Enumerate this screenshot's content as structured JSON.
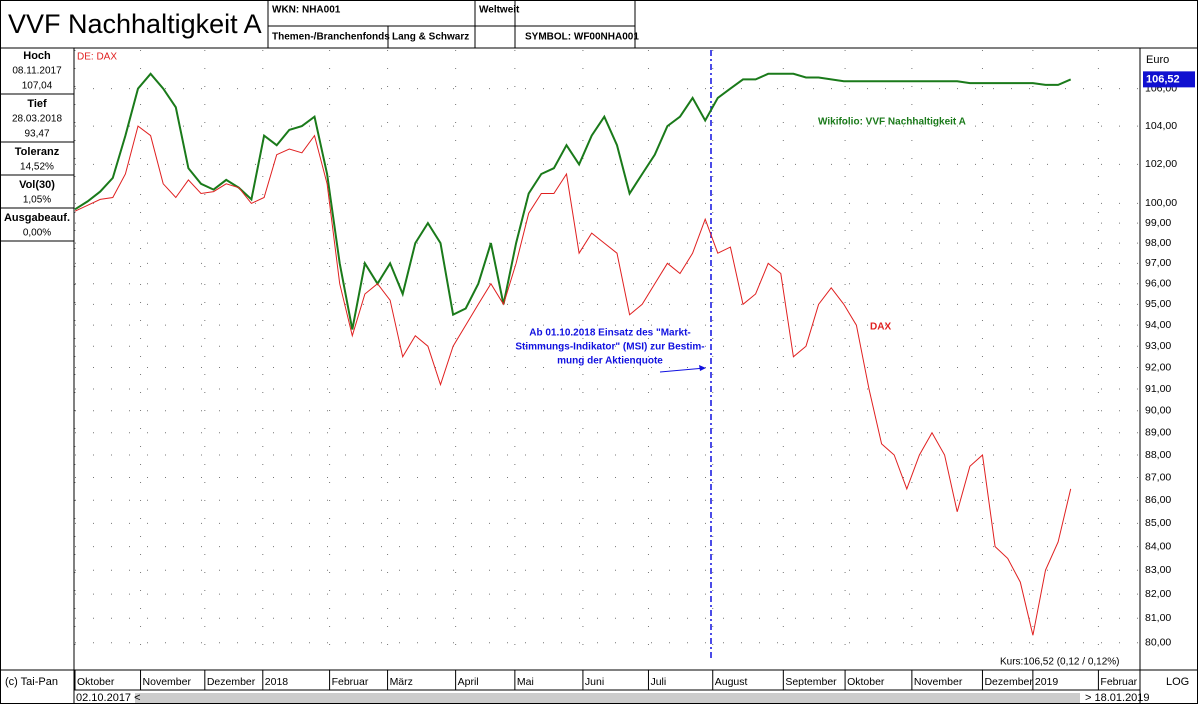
{
  "header": {
    "title": "VVF Nachhaltigkeit A",
    "wkn": "WKN: NHA001",
    "category": "Themen-/Branchenfonds",
    "exchange": "Lang & Schwarz",
    "region": "Weltweit",
    "symbol": "SYMBOL: WF00NHA001"
  },
  "stats": [
    {
      "label": "Hoch",
      "lines": [
        "08.11.2017",
        "107,04"
      ]
    },
    {
      "label": "Tief",
      "lines": [
        "28.03.2018",
        "93,47"
      ]
    },
    {
      "label": "Toleranz",
      "lines": [
        "14,52%"
      ]
    },
    {
      "label": "Vol(30)",
      "lines": [
        "1,05%"
      ]
    },
    {
      "label": "Ausgabeauf.",
      "lines": [
        "0,00%"
      ]
    }
  ],
  "footer": {
    "copyright": "(c) Tai-Pan",
    "scale_mode": "LOG",
    "start": "02.10.2017 <",
    "end": "> 18.01.2019"
  },
  "chart_data": {
    "type": "line",
    "subtitle": "DE: DAX",
    "y_unit": "Euro",
    "last_label": "106,52",
    "log_scale": true,
    "grid": true,
    "quote": "Kurs:106,52 (0,12 / 0,12%)",
    "annotation": [
      "Ab 01.10.2018 Einsatz des \"Markt-",
      "Stimmungs-Indikator\" (MSI) zur Bestim-",
      "mung der Aktienquote"
    ],
    "xlim": [
      0,
      84.5
    ],
    "xticks": [
      {
        "value": 0,
        "label": "Oktober"
      },
      {
        "value": 5.2,
        "label": "November"
      },
      {
        "value": 10.3,
        "label": "Dezember"
      },
      {
        "value": 14.9,
        "label": "2018"
      },
      {
        "value": 20.2,
        "label": "Februar"
      },
      {
        "value": 24.8,
        "label": "März"
      },
      {
        "value": 30.2,
        "label": "April"
      },
      {
        "value": 34.9,
        "label": "Mai"
      },
      {
        "value": 40.3,
        "label": "Juni"
      },
      {
        "value": 45.5,
        "label": "Juli"
      },
      {
        "value": 50.6,
        "label": "August"
      },
      {
        "value": 56.2,
        "label": "September"
      },
      {
        "value": 61.1,
        "label": "Oktober"
      },
      {
        "value": 66.4,
        "label": "November"
      },
      {
        "value": 72.0,
        "label": "Dezember"
      },
      {
        "value": 76.0,
        "label": "2019"
      },
      {
        "value": 81.2,
        "label": "Februar"
      }
    ],
    "ylim": [
      79.3,
      108.1
    ],
    "yticks": [
      {
        "value": 80,
        "label": "80,00"
      },
      {
        "value": 81,
        "label": "81,00"
      },
      {
        "value": 82,
        "label": "82,00"
      },
      {
        "value": 83,
        "label": "83,00"
      },
      {
        "value": 84,
        "label": "84,00"
      },
      {
        "value": 85,
        "label": "85,00"
      },
      {
        "value": 86,
        "label": "86,00"
      },
      {
        "value": 87,
        "label": "87,00"
      },
      {
        "value": 88,
        "label": "88,00"
      },
      {
        "value": 89,
        "label": "89,00"
      },
      {
        "value": 90,
        "label": "90,00"
      },
      {
        "value": 91,
        "label": "91,00"
      },
      {
        "value": 92,
        "label": "92,00"
      },
      {
        "value": 93,
        "label": "93,00"
      },
      {
        "value": 94,
        "label": "94,00"
      },
      {
        "value": 95,
        "label": "95,00"
      },
      {
        "value": 96,
        "label": "96,00"
      },
      {
        "value": 97,
        "label": "97,00"
      },
      {
        "value": 98,
        "label": "98,00"
      },
      {
        "value": 99,
        "label": "99,00"
      },
      {
        "value": 100,
        "label": "100,00"
      },
      {
        "value": 102,
        "label": "102,00"
      },
      {
        "value": 104,
        "label": "104,00"
      },
      {
        "value": 106,
        "label": "106,00"
      }
    ],
    "series": [
      {
        "name": "Wikifolio: VVF Nachhaltigkeit A",
        "color": "#1a7a1a",
        "values": [
          99.7,
          100.1,
          100.6,
          101.3,
          103.5,
          106.0,
          106.8,
          106.0,
          105.0,
          101.8,
          101.0,
          100.7,
          101.2,
          100.8,
          100.2,
          103.5,
          103.0,
          103.8,
          104.0,
          104.5,
          101.5,
          97.0,
          93.8,
          97.0,
          96.0,
          97.0,
          95.5,
          98.0,
          99.0,
          98.0,
          94.5,
          94.8,
          96.0,
          98.0,
          95.0,
          98.0,
          100.5,
          101.5,
          101.8,
          103.0,
          102.0,
          103.5,
          104.5,
          103.0,
          100.5,
          101.5,
          102.5,
          104.0,
          104.5,
          105.5,
          104.3,
          105.5,
          106.0,
          106.5,
          106.5,
          106.8,
          106.8,
          106.8,
          106.6,
          106.6,
          106.5,
          106.4,
          106.4,
          106.4,
          106.4,
          106.4,
          106.4,
          106.4,
          106.4,
          106.4,
          106.4,
          106.3,
          106.3,
          106.3,
          106.3,
          106.3,
          106.3,
          106.2,
          106.2,
          106.5
        ]
      },
      {
        "name": "DAX",
        "color": "#e02020",
        "values": [
          99.6,
          99.9,
          100.2,
          100.3,
          101.5,
          104.0,
          103.5,
          101.0,
          100.3,
          101.2,
          100.5,
          100.6,
          101.0,
          100.8,
          100.0,
          100.3,
          102.5,
          102.8,
          102.6,
          103.5,
          101.0,
          96.0,
          93.5,
          95.5,
          96.0,
          95.2,
          92.5,
          93.5,
          93.0,
          91.2,
          93.0,
          94.0,
          95.0,
          96.0,
          95.0,
          97.0,
          99.5,
          100.5,
          100.5,
          101.5,
          97.5,
          98.5,
          98.0,
          97.5,
          94.5,
          95.0,
          96.0,
          97.0,
          96.5,
          97.5,
          99.2,
          97.5,
          97.8,
          95.0,
          95.5,
          97.0,
          96.5,
          92.5,
          93.0,
          95.0,
          95.8,
          95.0,
          94.0,
          91.0,
          88.5,
          88.0,
          86.5,
          88.0,
          89.0,
          88.0,
          85.5,
          87.5,
          88.0,
          84.0,
          83.5,
          82.5,
          80.3,
          83.0,
          84.2,
          86.5
        ]
      }
    ]
  }
}
